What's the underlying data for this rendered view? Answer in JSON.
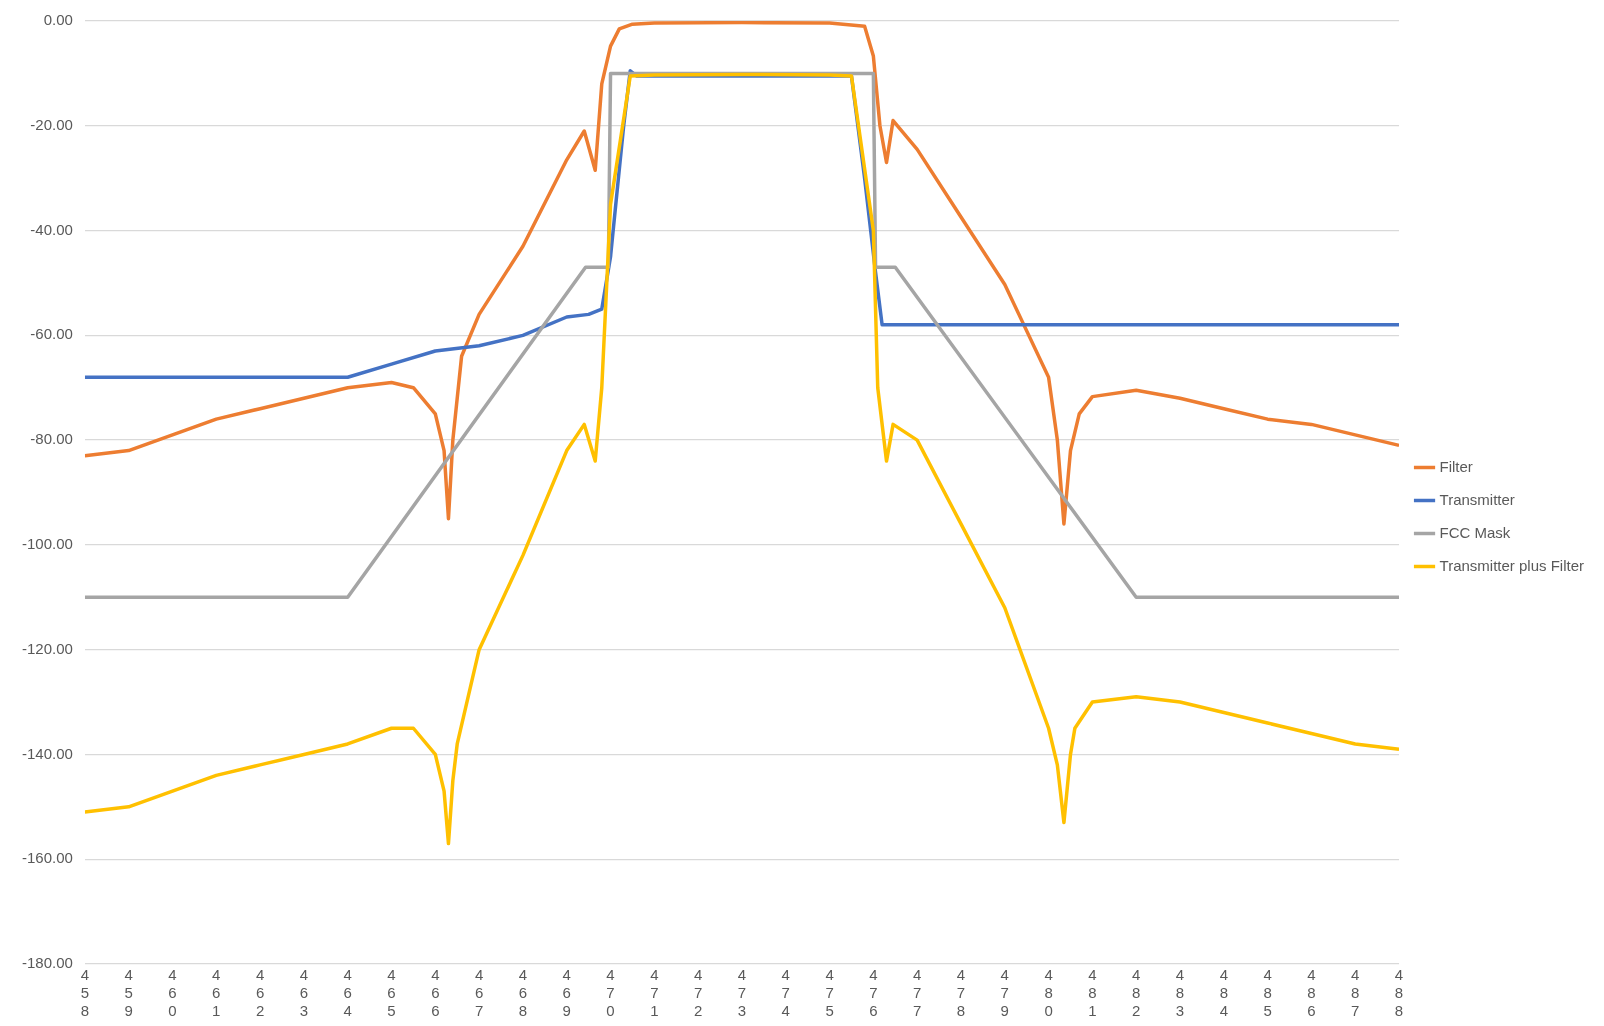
{
  "chart_data": {
    "type": "line",
    "xlim": [
      458,
      488
    ],
    "xticks": [
      458,
      459,
      460,
      461,
      462,
      463,
      464,
      465,
      466,
      467,
      468,
      469,
      470,
      471,
      472,
      473,
      474,
      475,
      476,
      477,
      478,
      479,
      480,
      481,
      482,
      483,
      484,
      485,
      486,
      487,
      488
    ],
    "ylim": [
      -180,
      0
    ],
    "yticks": [
      {
        "value": -180,
        "label": "-180.00"
      },
      {
        "value": -160,
        "label": "-160.00"
      },
      {
        "value": -140,
        "label": "-140.00"
      },
      {
        "value": -120,
        "label": "-120.00"
      },
      {
        "value": -100,
        "label": "-100.00"
      },
      {
        "value": -80,
        "label": "-80.00"
      },
      {
        "value": -60,
        "label": "-60.00"
      },
      {
        "value": -40,
        "label": "-40.00"
      },
      {
        "value": -20,
        "label": "-20.00"
      },
      {
        "value": 0,
        "label": "0.00"
      }
    ],
    "grid": "y",
    "legend": "right",
    "marker": "none",
    "line_style": "solid",
    "series": [
      {
        "name": "Filter",
        "color": "#ed7d31",
        "x": [
          458,
          459,
          460,
          461,
          462,
          463,
          464,
          465,
          465.5,
          466,
          466.2,
          466.3,
          466.4,
          466.6,
          467,
          468,
          469,
          469.4,
          469.65,
          469.8,
          470,
          470.2,
          470.5,
          471,
          473,
          475,
          475.8,
          476,
          476.15,
          476.3,
          476.45,
          477,
          478,
          479,
          480,
          480.2,
          480.35,
          480.5,
          480.7,
          481,
          482,
          483,
          484,
          485,
          486,
          487,
          488
        ],
        "values": [
          -83,
          -82,
          -79,
          -76,
          -74,
          -72,
          -70,
          -69,
          -70,
          -75,
          -82,
          -95,
          -80,
          -64,
          -56,
          -43,
          -26.5,
          -21,
          -28.5,
          -12,
          -4.8,
          -1.5,
          -0.6,
          -0.4,
          -0.3,
          -0.4,
          -1,
          -6.7,
          -20,
          -27,
          -19,
          -24.5,
          -37.4,
          -50.3,
          -68,
          -80,
          -96,
          -82,
          -75,
          -71.7,
          -70.5,
          -72,
          -74,
          -76,
          -77,
          -79,
          -81
        ]
      },
      {
        "name": "Transmitter",
        "color": "#4472c4",
        "x": [
          458,
          464,
          465,
          466,
          467,
          468,
          469,
          469.5,
          469.8,
          470,
          470.3,
          470.45,
          470.6,
          475.5,
          475.8,
          476.05,
          476.2,
          488
        ],
        "values": [
          -68,
          -68,
          -65.5,
          -63,
          -62,
          -60,
          -56.5,
          -56,
          -55,
          -45,
          -20,
          -9.5,
          -10.5,
          -10.5,
          -30,
          -48,
          -58,
          -58
        ]
      },
      {
        "name": "FCC Mask",
        "color": "#a5a5a5",
        "x": [
          458,
          464,
          469.43,
          469.95,
          470,
          476,
          476.05,
          476.5,
          482,
          488
        ],
        "values": [
          -110,
          -110,
          -47,
          -47,
          -10,
          -10,
          -47,
          -47,
          -110,
          -110
        ]
      },
      {
        "name": "Transmitter plus Filter",
        "color": "#ffc000",
        "x": [
          458,
          459,
          460,
          461,
          462,
          463,
          464,
          465,
          465.5,
          466,
          466.2,
          466.3,
          466.4,
          466.5,
          467,
          468,
          469,
          469.4,
          469.65,
          469.8,
          470,
          470.45,
          471,
          473,
          475,
          475.5,
          476,
          476.1,
          476.3,
          476.45,
          477,
          478,
          479,
          480,
          480.2,
          480.35,
          480.5,
          480.6,
          481,
          482,
          483,
          484,
          485,
          486,
          487,
          488
        ],
        "values": [
          -151,
          -150,
          -147,
          -144,
          -142,
          -140,
          -138,
          -135,
          -135,
          -140,
          -147,
          -157,
          -145,
          -138,
          -120,
          -102,
          -82,
          -77,
          -84,
          -70,
          -35,
          -10.5,
          -10.3,
          -10.2,
          -10.3,
          -10.5,
          -40,
          -70,
          -84,
          -77,
          -80,
          -96,
          -112,
          -135,
          -142,
          -153,
          -140,
          -135,
          -130,
          -129,
          -130,
          -132,
          -134,
          -136,
          -138,
          -139
        ]
      }
    ]
  }
}
